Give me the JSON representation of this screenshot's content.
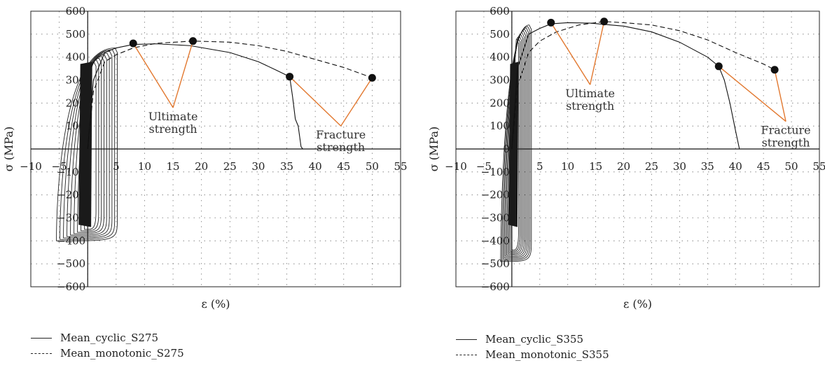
{
  "chart_data": [
    {
      "type": "line",
      "xlabel": "ε (%)",
      "ylabel": "σ (MPa)",
      "xlim": [
        -10,
        55
      ],
      "ylim": [
        -600,
        600
      ],
      "xticks": [
        -10,
        -5,
        0,
        5,
        10,
        15,
        20,
        25,
        30,
        35,
        40,
        45,
        50,
        55
      ],
      "yticks": [
        -600,
        -500,
        -400,
        -300,
        -200,
        -100,
        0,
        100,
        200,
        300,
        400,
        500,
        600
      ],
      "grid": true,
      "legend_position": "below",
      "series": [
        {
          "name": "Mean_cyclic_S275",
          "style": "solid",
          "x": [
            0,
            1,
            3,
            5,
            8,
            12,
            18,
            25,
            30,
            33,
            35.5,
            36,
            36.5,
            37,
            37.5,
            37.8
          ],
          "y": [
            0,
            300,
            420,
            440,
            455,
            458,
            450,
            420,
            380,
            345,
            315,
            230,
            130,
            100,
            10,
            0
          ]
        },
        {
          "name": "Mean_monotonic_S275",
          "style": "dashed",
          "x": [
            0,
            1,
            3,
            5,
            8,
            12,
            18.5,
            25,
            30,
            35,
            40,
            45,
            50
          ],
          "y": [
            0,
            250,
            380,
            410,
            440,
            460,
            470,
            465,
            450,
            425,
            390,
            355,
            310
          ]
        }
      ],
      "markers": [
        {
          "x": 8,
          "y": 460
        },
        {
          "x": 18.5,
          "y": 470
        },
        {
          "x": 35.5,
          "y": 315
        },
        {
          "x": 50,
          "y": 310
        }
      ],
      "annotations": [
        {
          "text": [
            "Ultimate",
            "strength"
          ],
          "x": 15,
          "y": 180
        },
        {
          "text": [
            "Fracture",
            "strength"
          ],
          "x": 44.5,
          "y": 100
        }
      ]
    },
    {
      "type": "line",
      "xlabel": "ε (%)",
      "ylabel": "σ (MPa)",
      "xlim": [
        -10,
        55
      ],
      "ylim": [
        -600,
        600
      ],
      "xticks": [
        -10,
        -5,
        0,
        5,
        10,
        15,
        20,
        25,
        30,
        35,
        40,
        45,
        50,
        55
      ],
      "yticks": [
        -600,
        -500,
        -400,
        -300,
        -200,
        -100,
        0,
        100,
        200,
        300,
        400,
        500,
        600
      ],
      "grid": true,
      "legend_position": "below",
      "series": [
        {
          "name": "Mean_cyclic_S355",
          "style": "solid",
          "x": [
            0,
            1,
            3,
            5,
            7,
            10,
            14,
            20,
            25,
            30,
            35,
            37,
            38,
            39,
            40,
            40.7
          ],
          "y": [
            0,
            350,
            500,
            525,
            545,
            550,
            548,
            535,
            510,
            465,
            400,
            360,
            300,
            200,
            80,
            0
          ]
        },
        {
          "name": "Mean_monotonic_S355",
          "style": "dashed",
          "x": [
            0,
            1,
            3,
            5,
            8,
            12,
            16.5,
            20,
            25,
            30,
            35,
            40,
            45,
            47
          ],
          "y": [
            0,
            270,
            420,
            470,
            510,
            540,
            555,
            550,
            540,
            515,
            475,
            420,
            370,
            345
          ]
        }
      ],
      "markers": [
        {
          "x": 7,
          "y": 550
        },
        {
          "x": 16.5,
          "y": 555
        },
        {
          "x": 37,
          "y": 360
        },
        {
          "x": 47,
          "y": 345
        }
      ],
      "annotations": [
        {
          "text": [
            "Ultimate",
            "strength"
          ],
          "x": 14,
          "y": 280
        },
        {
          "text": [
            "Fracture",
            "strength"
          ],
          "x": 49,
          "y": 120
        }
      ]
    }
  ]
}
